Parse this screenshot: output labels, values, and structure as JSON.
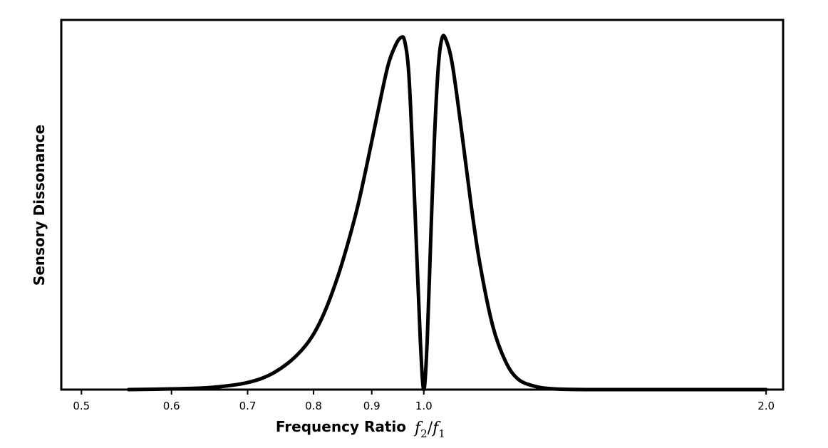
{
  "chart_data": {
    "type": "line",
    "xlabel": "Frequency Ratio",
    "xlabel_math": {
      "base1": "f",
      "sub1": "2",
      "slash": "/",
      "base2": "f",
      "sub2": "1"
    },
    "ylabel": "Sensory Dissonance",
    "x_scale": "log",
    "xlim": [
      0.48,
      2.07
    ],
    "ylim": [
      0,
      1.05
    ],
    "xticks": [
      {
        "value": 0.5,
        "label": "0.5"
      },
      {
        "value": 0.6,
        "label": "0.6"
      },
      {
        "value": 0.7,
        "label": "0.7"
      },
      {
        "value": 0.8,
        "label": "0.8"
      },
      {
        "value": 0.9,
        "label": "0.9"
      },
      {
        "value": 1.0,
        "label": "1.0"
      },
      {
        "value": 2.0,
        "label": "2.0"
      }
    ],
    "yticks": [],
    "grid": false,
    "legend": "none",
    "series": [
      {
        "color": "#000000",
        "x": [
          0.55,
          0.6,
          0.65,
          0.7,
          0.74,
          0.78,
          0.81,
          0.84,
          0.87,
          0.89,
          0.91,
          0.93,
          0.945,
          0.955,
          0.962,
          0.97,
          0.978,
          0.986,
          0.993,
          1.0,
          1.007,
          1.014,
          1.022,
          1.03,
          1.038,
          1.047,
          1.06,
          1.08,
          1.1,
          1.12,
          1.15,
          1.18,
          1.21,
          1.25,
          1.3,
          1.4,
          1.6,
          2.0
        ],
        "y": [
          0.0,
          0.002,
          0.006,
          0.02,
          0.05,
          0.11,
          0.19,
          0.32,
          0.49,
          0.63,
          0.78,
          0.92,
          0.98,
          1.0,
          0.99,
          0.9,
          0.66,
          0.38,
          0.14,
          0.0,
          0.14,
          0.42,
          0.72,
          0.92,
          1.0,
          0.99,
          0.92,
          0.73,
          0.53,
          0.36,
          0.18,
          0.08,
          0.03,
          0.01,
          0.002,
          0.0,
          0.0,
          0.0
        ]
      }
    ]
  }
}
